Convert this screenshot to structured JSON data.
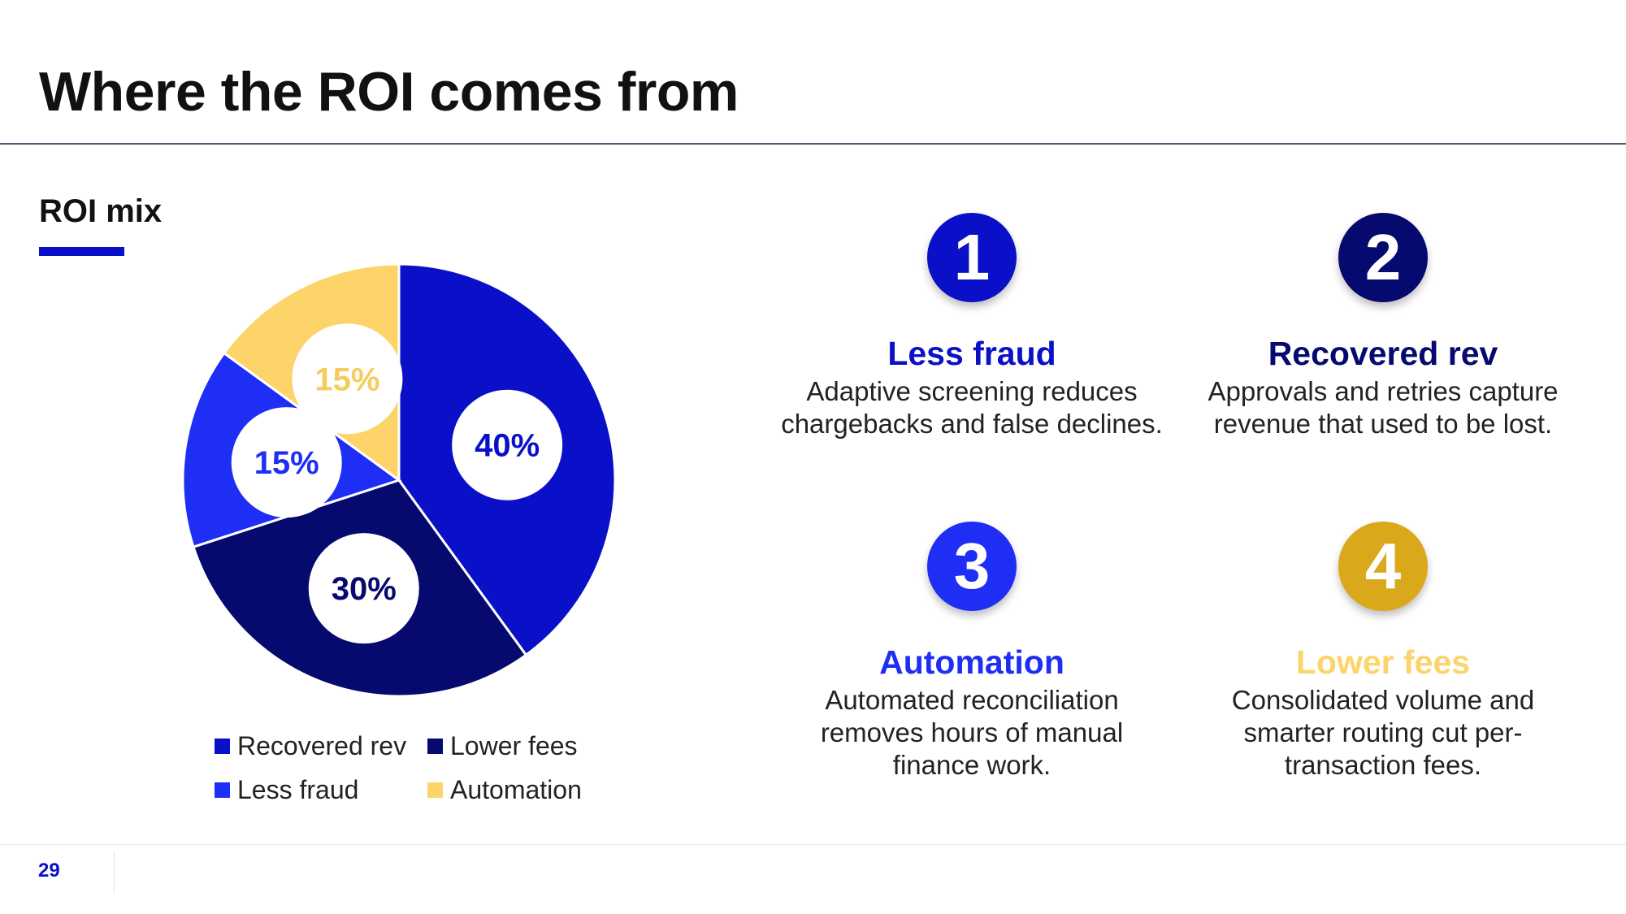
{
  "slide": {
    "title": "Where the ROI comes from",
    "section_title": "ROI mix",
    "page_number": "29",
    "accent_color": "#0a10c8"
  },
  "chart_data": {
    "type": "pie",
    "slices": [
      {
        "name": "Recovered rev",
        "value": 40,
        "label": "40%",
        "color": "#0a10c8",
        "label_color": "#0a10c8"
      },
      {
        "name": "Lower fees",
        "value": 30,
        "label": "30%",
        "color": "#06096e",
        "label_color": "#06096e"
      },
      {
        "name": "Less fraud",
        "value": 15,
        "label": "15%",
        "color": "#1f2ef5",
        "label_color": "#1f2ef5"
      },
      {
        "name": "Automation",
        "value": 15,
        "label": "15%",
        "color": "#fcd46a",
        "label_color": "#f7cc5e"
      }
    ],
    "legend": [
      "Recovered rev",
      "Lower fees",
      "Less fraud",
      "Automation"
    ],
    "legend_position": "bottom"
  },
  "features": [
    {
      "number": "1",
      "title": "Less fraud",
      "description": "Adaptive screening reduces chargebacks and false declines.",
      "badge_color": "#0a10c8",
      "title_color": "#0a10c8"
    },
    {
      "number": "2",
      "title": "Recovered rev",
      "description": "Approvals and retries capture revenue that used to be lost.",
      "badge_color": "#06096e",
      "title_color": "#06096e"
    },
    {
      "number": "3",
      "title": "Automation",
      "description": "Automated reconciliation removes hours of manual finance work.",
      "badge_color": "#1f2ef5",
      "title_color": "#1f2ef5"
    },
    {
      "number": "4",
      "title": "Lower fees",
      "description": "Consolidated volume and smarter routing cut per-transaction fees.",
      "badge_color": "#d9a81b",
      "title_color": "#fcd46a"
    }
  ]
}
